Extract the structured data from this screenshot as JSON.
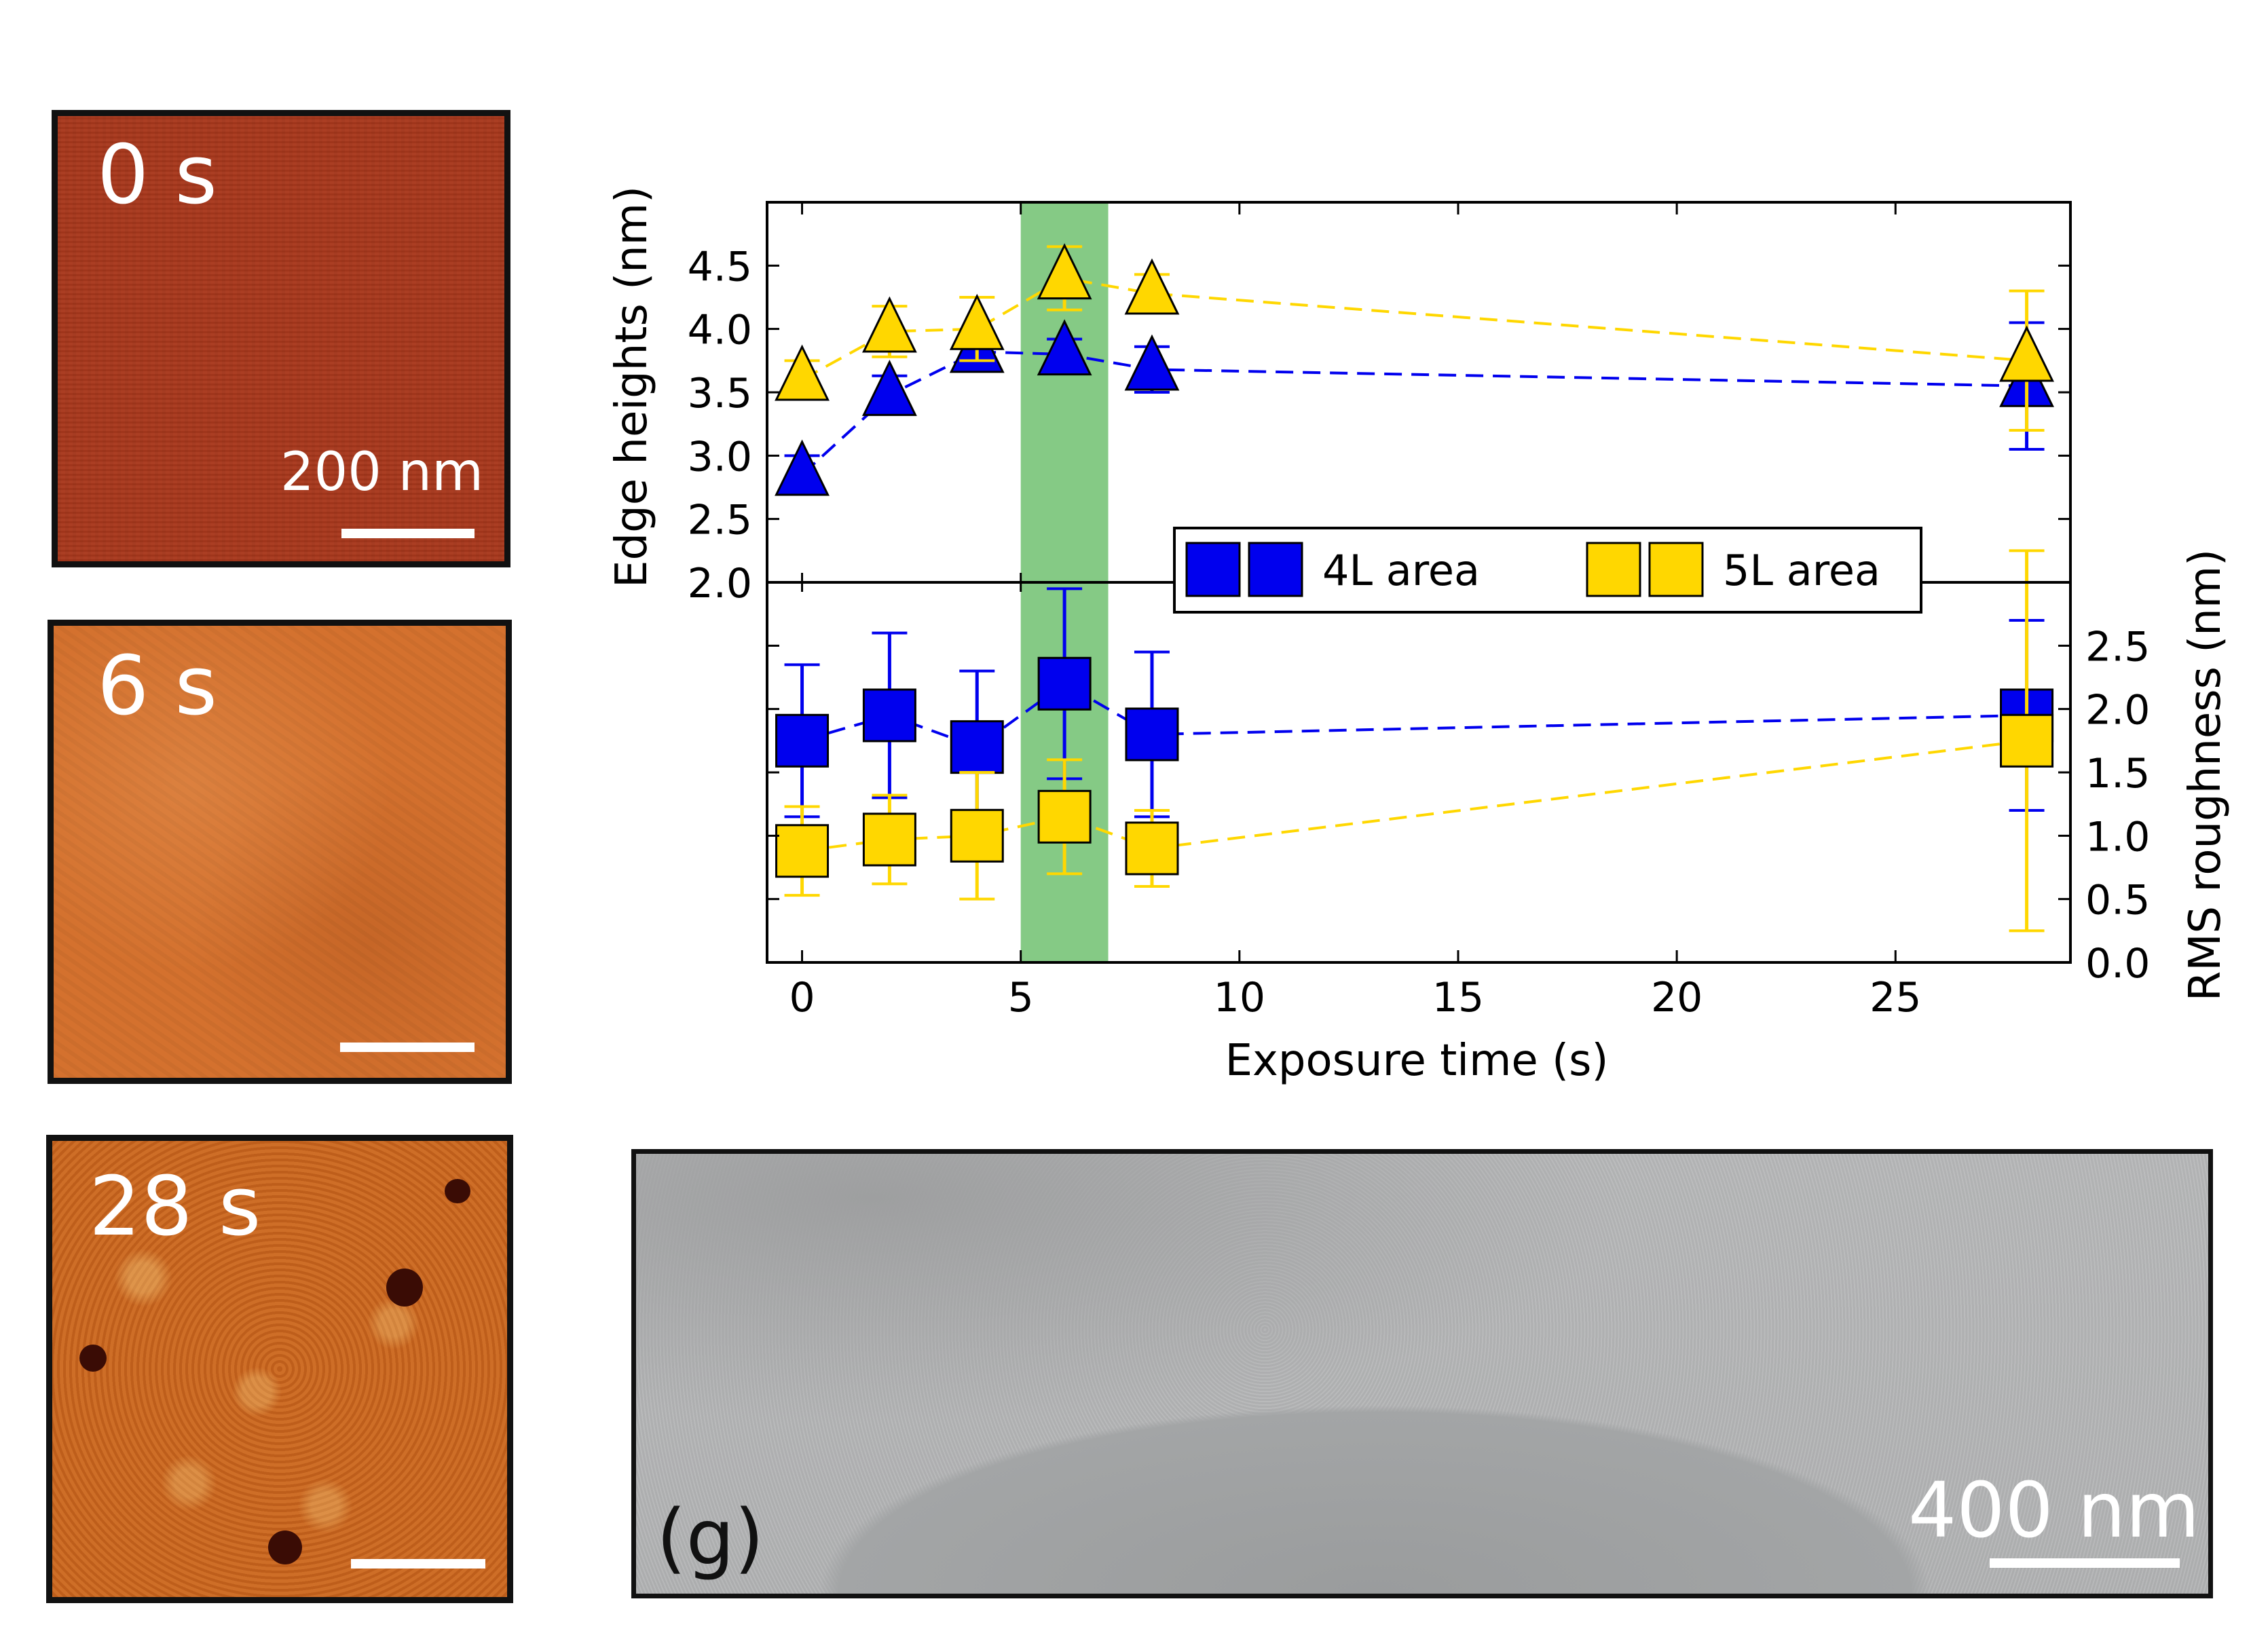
{
  "panels": {
    "afm_0s": {
      "time_label": "0 s",
      "scale_label": "200 nm"
    },
    "afm_6s": {
      "time_label": "6 s"
    },
    "afm_28s": {
      "time_label": "28 s"
    },
    "sem": {
      "label": "(g)",
      "scale_label": "400 nm"
    }
  },
  "colors": {
    "blue": "#0000ee",
    "yellow": "#ffd700",
    "highlight": "#5cb85c",
    "axis": "#000000"
  },
  "chart_data": {
    "type": "scatter",
    "xlabel": "Exposure time (s)",
    "ylabel_left": "Edge heights (nm)",
    "ylabel_right": "RMS roughness (nm)",
    "xlim": [
      -0.8,
      29
    ],
    "x_ticks": [
      0,
      5,
      10,
      15,
      20,
      25
    ],
    "top_ylim": [
      2.0,
      5.0
    ],
    "top_y_ticks": [
      2.0,
      2.5,
      3.0,
      3.5,
      4.0,
      4.5
    ],
    "bottom_ylim": [
      0.0,
      3.0
    ],
    "bottom_y_ticks": [
      0.0,
      0.5,
      1.0,
      1.5,
      2.0,
      2.5
    ],
    "highlight_x_range": [
      5,
      7
    ],
    "legend": {
      "position": "center-right",
      "entries": [
        "4L area",
        "5L area"
      ]
    },
    "edge_heights": [
      {
        "name": "4L area",
        "color": "blue",
        "marker": "triangle",
        "x": [
          0,
          2,
          4,
          6,
          8,
          28
        ],
        "y": [
          2.85,
          3.48,
          3.82,
          3.8,
          3.68,
          3.55
        ],
        "err": [
          0.15,
          0.15,
          0.08,
          0.12,
          0.18,
          0.5
        ]
      },
      {
        "name": "5L area",
        "color": "yellow",
        "marker": "triangle",
        "x": [
          0,
          2,
          4,
          6,
          8,
          28
        ],
        "y": [
          3.6,
          3.98,
          4.0,
          4.4,
          4.28,
          3.75
        ],
        "err": [
          0.15,
          0.2,
          0.25,
          0.25,
          0.15,
          0.55
        ]
      },
      {
        "name": "4L area",
        "color": "blue",
        "marker": "square",
        "x": [
          0,
          2,
          4,
          6,
          8,
          28
        ],
        "y": [
          1.75,
          1.95,
          1.7,
          2.2,
          1.8,
          1.95
        ],
        "err": [
          0.6,
          0.65,
          0.6,
          0.75,
          0.65,
          0.75
        ]
      },
      {
        "name": "5L area",
        "color": "yellow",
        "marker": "square",
        "x": [
          0,
          2,
          4,
          6,
          8,
          28
        ],
        "y": [
          0.88,
          0.97,
          1.0,
          1.15,
          0.9,
          1.75
        ],
        "err": [
          0.35,
          0.35,
          0.5,
          0.45,
          0.3,
          1.5
        ]
      }
    ]
  }
}
